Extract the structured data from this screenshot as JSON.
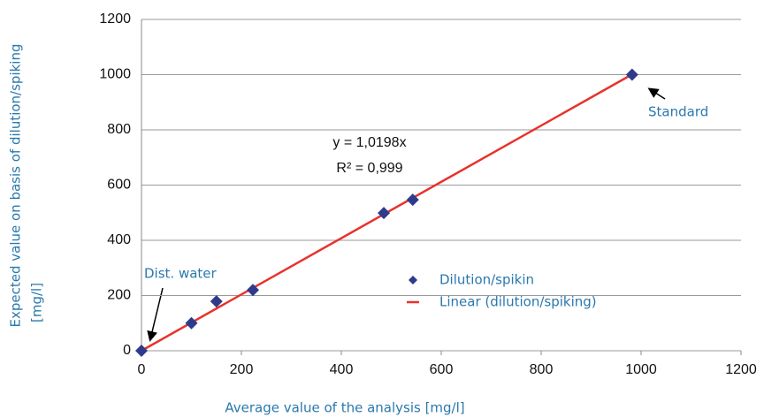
{
  "chart_data": {
    "type": "scatter",
    "x_label": "Average value of the analysis [mg/l]",
    "y_label": [
      "Expected value on basis of dilution/spiking",
      "[mg/l]"
    ],
    "xlim": [
      0,
      1200
    ],
    "ylim": [
      0,
      1200
    ],
    "xticks": [
      0,
      200,
      400,
      600,
      800,
      1000,
      1200
    ],
    "yticks": [
      0,
      200,
      400,
      600,
      800,
      1000,
      1200
    ],
    "grid": true,
    "series": [
      {
        "name": "Dilution/spikin",
        "color": "#2e3b8c",
        "marker": "diamond",
        "x": [
          0,
          100,
          150,
          223,
          485,
          543,
          982
        ],
        "values": [
          0,
          100,
          179,
          220,
          499,
          547,
          1000
        ]
      },
      {
        "name": "Linear (dilution/spiking)",
        "color": "#e8322c",
        "marker": "line",
        "x": [
          0,
          981
        ],
        "values": [
          0,
          1000
        ]
      }
    ],
    "annotations": {
      "equation": "y = 1,0198x",
      "r_squared": "R² = 0,999",
      "dist_water": "Dist. water",
      "standard": "Standard"
    }
  }
}
